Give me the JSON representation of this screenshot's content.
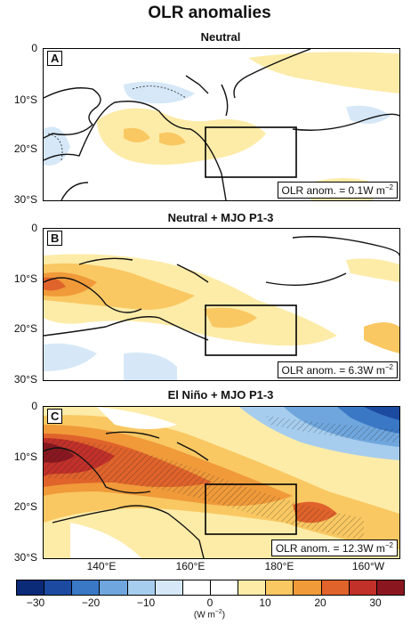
{
  "title": "OLR anomalies",
  "panels": [
    {
      "letter": "A",
      "title": "Neutral",
      "anomaly": "OLR anom. = 0.1W m"
    },
    {
      "letter": "B",
      "title": "Neutral + MJO P1-3",
      "anomaly": "OLR anom. = 6.3W m"
    },
    {
      "letter": "C",
      "title": "El Niño + MJO P1-3",
      "anomaly": "OLR anom. = 12.3W m"
    }
  ],
  "superscript": "−2",
  "y_ticks": [
    "0",
    "10°S",
    "20°S",
    "30°S"
  ],
  "x_ticks": [
    "140°E",
    "160°E",
    "180°E",
    "160°W"
  ],
  "colorbar": {
    "ticks": [
      "−30",
      "−20",
      "−10",
      "0",
      "10",
      "20",
      "30"
    ],
    "units": "(W m",
    "units_close": ")",
    "colors": [
      "#0b2a78",
      "#1c4aa0",
      "#3a78c6",
      "#6fa6dd",
      "#a6cdee",
      "#d6e8f7",
      "#ffffff",
      "#ffffff",
      "#fdeca8",
      "#f9c862",
      "#f09a3a",
      "#e0632b",
      "#c2302a",
      "#8a1720"
    ]
  }
}
